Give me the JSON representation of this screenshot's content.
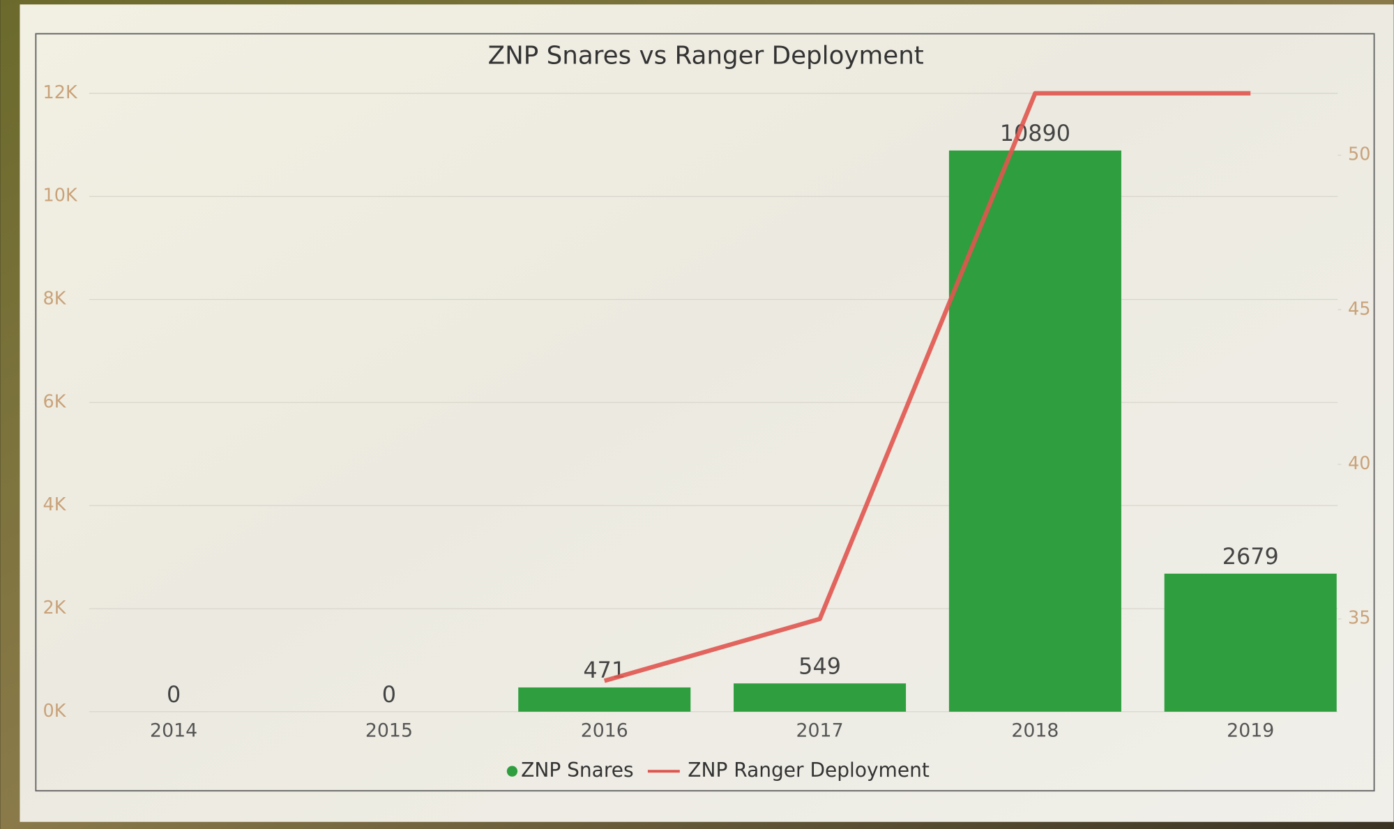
{
  "chart_data": {
    "type": "combo",
    "title": "ZNP Snares vs Ranger Deployment",
    "categories": [
      "2014",
      "2015",
      "2016",
      "2017",
      "2018",
      "2019"
    ],
    "series": [
      {
        "name": "ZNP Snares",
        "type": "bar",
        "color": "#2e9e3f",
        "values": [
          0,
          0,
          471,
          549,
          10890,
          2679
        ]
      },
      {
        "name": "ZNP Ranger Deployment",
        "type": "line",
        "color": "#e0554f",
        "axis": "y2",
        "values": [
          null,
          null,
          33,
          35,
          52,
          52
        ]
      }
    ],
    "ylim": [
      0,
      12000
    ],
    "yticks": [
      {
        "value": 0,
        "label": "0K"
      },
      {
        "value": 2000,
        "label": "2K"
      },
      {
        "value": 4000,
        "label": "4K"
      },
      {
        "value": 6000,
        "label": "6K"
      },
      {
        "value": 8000,
        "label": "8K"
      },
      {
        "value": 10000,
        "label": "10K"
      },
      {
        "value": 12000,
        "label": "12K"
      }
    ],
    "y2lim": [
      32,
      52
    ],
    "y2ticks": [
      35,
      40,
      45,
      50
    ],
    "grid": true,
    "legend": "bottom"
  }
}
